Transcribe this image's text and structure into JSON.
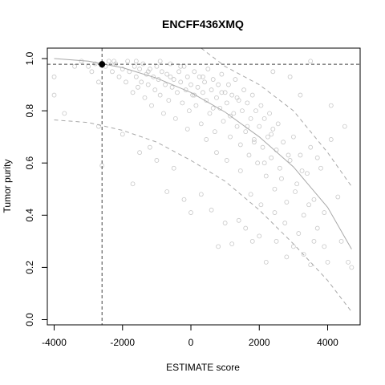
{
  "chart_data": {
    "type": "scatter",
    "title": "ENCFF436XMQ",
    "xlabel": "ESTIMATE score",
    "ylabel": "Tumor purity",
    "xlim": [
      -4200,
      4950
    ],
    "ylim": [
      -0.02,
      1.04
    ],
    "x_ticks": [
      -4000,
      -2000,
      0,
      2000,
      4000
    ],
    "x_tick_labels": [
      "-4000",
      "-2000",
      "0",
      "2000",
      "4000"
    ],
    "y_ticks": [
      0.0,
      0.2,
      0.4,
      0.6,
      0.8,
      1.0
    ],
    "y_tick_labels": [
      "0.0",
      "0.2",
      "0.4",
      "0.6",
      "0.8",
      "1.0"
    ],
    "grid": false,
    "legend": "none",
    "colors": {
      "points": "#c8c8c8",
      "fit_line": "#a8a8a8",
      "highlight": "#000000",
      "reference_lines": "#444444",
      "frame": "#000000"
    },
    "fit_curve": {
      "x": [
        -4000,
        -3000,
        -2000,
        -1000,
        0,
        1000,
        2000,
        3000,
        4000,
        4700
      ],
      "y": [
        1.0,
        0.99,
        0.965,
        0.925,
        0.87,
        0.795,
        0.7,
        0.585,
        0.43,
        0.27
      ]
    },
    "upper_bound": {
      "x": [
        300,
        1000,
        2000,
        3000,
        4000,
        4700
      ],
      "y": [
        1.04,
        0.97,
        0.9,
        0.8,
        0.64,
        0.51
      ]
    },
    "lower_bound": {
      "x": [
        -4000,
        -3000,
        -2000,
        -1000,
        0,
        1000,
        2000,
        3000,
        4000,
        4700
      ],
      "y": [
        0.765,
        0.755,
        0.725,
        0.68,
        0.61,
        0.53,
        0.42,
        0.29,
        0.15,
        0.03
      ]
    },
    "highlight_point": {
      "x": -2600,
      "y": 0.978
    },
    "reference_lines": {
      "vertical_x": -2600,
      "horizontal_y": 0.978,
      "style": "dashed"
    },
    "scatter_points": [
      [
        -4000,
        0.93
      ],
      [
        -4000,
        0.86
      ],
      [
        -3700,
        0.79
      ],
      [
        -3200,
        0.99
      ],
      [
        -3000,
        0.97
      ],
      [
        -2900,
        0.95
      ],
      [
        -2700,
        0.91
      ],
      [
        -2500,
        0.97
      ],
      [
        -2400,
        0.99
      ],
      [
        -2300,
        0.95
      ],
      [
        -2200,
        0.98
      ],
      [
        -2100,
        0.93
      ],
      [
        -2000,
        0.96
      ],
      [
        -1900,
        0.91
      ],
      [
        -1850,
        0.99
      ],
      [
        -1800,
        0.95
      ],
      [
        -1700,
        0.87
      ],
      [
        -1650,
        0.97
      ],
      [
        -1600,
        0.93
      ],
      [
        -1550,
        0.89
      ],
      [
        -1500,
        0.96
      ],
      [
        -1450,
        0.91
      ],
      [
        -1400,
        0.98
      ],
      [
        -1350,
        0.85
      ],
      [
        -1300,
        0.94
      ],
      [
        -1250,
        0.9
      ],
      [
        -1200,
        0.96
      ],
      [
        -1150,
        0.82
      ],
      [
        -1100,
        0.93
      ],
      [
        -1050,
        0.88
      ],
      [
        -1000,
        0.97
      ],
      [
        -950,
        0.92
      ],
      [
        -900,
        0.86
      ],
      [
        -850,
        0.95
      ],
      [
        -800,
        0.79
      ],
      [
        -750,
        0.9
      ],
      [
        -700,
        0.94
      ],
      [
        -650,
        0.84
      ],
      [
        -600,
        0.98
      ],
      [
        -550,
        0.89
      ],
      [
        -500,
        0.92
      ],
      [
        -450,
        0.77
      ],
      [
        -400,
        0.87
      ],
      [
        -350,
        0.95
      ],
      [
        -300,
        0.91
      ],
      [
        -250,
        0.83
      ],
      [
        -200,
        0.97
      ],
      [
        -150,
        0.88
      ],
      [
        -100,
        0.93
      ],
      [
        -50,
        0.8
      ],
      [
        0,
        0.9
      ],
      [
        50,
        0.86
      ],
      [
        100,
        0.95
      ],
      [
        150,
        0.82
      ],
      [
        200,
        0.89
      ],
      [
        250,
        0.93
      ],
      [
        300,
        0.75
      ],
      [
        350,
        0.87
      ],
      [
        400,
        0.91
      ],
      [
        450,
        0.84
      ],
      [
        500,
        0.96
      ],
      [
        550,
        0.79
      ],
      [
        600,
        0.88
      ],
      [
        650,
        0.92
      ],
      [
        700,
        0.72
      ],
      [
        750,
        0.85
      ],
      [
        800,
        0.9
      ],
      [
        850,
        0.81
      ],
      [
        900,
        0.94
      ],
      [
        950,
        0.76
      ],
      [
        1000,
        0.87
      ],
      [
        1050,
        0.83
      ],
      [
        1100,
        0.9
      ],
      [
        1150,
        0.7
      ],
      [
        1200,
        0.86
      ],
      [
        1250,
        0.79
      ],
      [
        1300,
        0.92
      ],
      [
        1350,
        0.74
      ],
      [
        1400,
        0.84
      ],
      [
        1450,
        0.67
      ],
      [
        1500,
        0.8
      ],
      [
        1550,
        0.88
      ],
      [
        1600,
        0.72
      ],
      [
        1650,
        0.83
      ],
      [
        1700,
        0.63
      ],
      [
        1750,
        0.77
      ],
      [
        1800,
        0.86
      ],
      [
        1850,
        0.69
      ],
      [
        1900,
        0.8
      ],
      [
        1950,
        0.6
      ],
      [
        2000,
        0.74
      ],
      [
        2050,
        0.82
      ],
      [
        2100,
        0.66
      ],
      [
        2150,
        0.77
      ],
      [
        2200,
        0.55
      ],
      [
        2250,
        0.7
      ],
      [
        2300,
        0.79
      ],
      [
        2350,
        0.62
      ],
      [
        2400,
        0.73
      ],
      [
        2450,
        0.5
      ],
      [
        2500,
        0.65
      ],
      [
        2550,
        0.75
      ],
      [
        2600,
        0.58
      ],
      [
        2700,
        0.68
      ],
      [
        2800,
        0.45
      ],
      [
        2900,
        0.61
      ],
      [
        3000,
        0.7
      ],
      [
        3100,
        0.52
      ],
      [
        3200,
        0.63
      ],
      [
        3300,
        0.4
      ],
      [
        3400,
        0.56
      ],
      [
        3500,
        0.66
      ],
      [
        3600,
        0.46
      ],
      [
        3700,
        0.35
      ],
      [
        3800,
        0.58
      ],
      [
        3900,
        0.28
      ],
      [
        4000,
        0.22
      ],
      [
        4100,
        0.69
      ],
      [
        4500,
        0.74
      ],
      [
        4600,
        0.22
      ],
      [
        4700,
        0.2
      ],
      [
        3500,
        0.21
      ],
      [
        3300,
        0.25
      ],
      [
        3000,
        0.28
      ],
      [
        2800,
        0.24
      ],
      [
        2500,
        0.3
      ],
      [
        2200,
        0.22
      ],
      [
        2000,
        0.32
      ],
      [
        1800,
        0.3
      ],
      [
        1600,
        0.35
      ],
      [
        1400,
        0.38
      ],
      [
        1200,
        0.29
      ],
      [
        1000,
        0.37
      ],
      [
        800,
        0.28
      ],
      [
        600,
        0.42
      ],
      [
        300,
        0.48
      ],
      [
        0,
        0.41
      ],
      [
        -200,
        0.46
      ],
      [
        -500,
        0.58
      ],
      [
        -700,
        0.49
      ],
      [
        -1000,
        0.61
      ],
      [
        -1200,
        0.66
      ],
      [
        -1500,
        0.64
      ],
      [
        -1700,
        0.52
      ],
      [
        -2000,
        0.71
      ],
      [
        -2600,
        0.59
      ],
      [
        -2700,
        0.74
      ],
      [
        2900,
        0.93
      ],
      [
        3500,
        0.99
      ],
      [
        3200,
        0.86
      ],
      [
        2400,
        0.95
      ],
      [
        4100,
        0.82
      ],
      [
        4300,
        0.47
      ],
      [
        4400,
        0.3
      ],
      [
        3700,
        0.62
      ],
      [
        100,
        0.86
      ],
      [
        350,
        0.93
      ],
      [
        650,
        0.81
      ],
      [
        900,
        0.87
      ],
      [
        1150,
        0.78
      ],
      [
        1350,
        0.85
      ],
      [
        1650,
        0.74
      ],
      [
        1850,
        0.68
      ],
      [
        2150,
        0.6
      ],
      [
        2350,
        0.71
      ],
      [
        2650,
        0.54
      ],
      [
        2850,
        0.63
      ],
      [
        3050,
        0.49
      ],
      [
        3250,
        0.57
      ],
      [
        3450,
        0.44
      ],
      [
        -300,
        0.97
      ],
      [
        -600,
        0.93
      ],
      [
        -900,
        0.99
      ],
      [
        -1250,
        0.95
      ],
      [
        -1600,
        0.99
      ],
      [
        -2250,
        0.99
      ],
      [
        -2800,
        0.98
      ],
      [
        -3400,
        0.97
      ],
      [
        -100,
        0.73
      ],
      [
        450,
        0.69
      ],
      [
        750,
        0.64
      ],
      [
        1050,
        0.61
      ],
      [
        1450,
        0.57
      ],
      [
        1750,
        0.48
      ],
      [
        2050,
        0.44
      ],
      [
        2450,
        0.41
      ],
      [
        2750,
        0.37
      ],
      [
        3150,
        0.33
      ],
      [
        3600,
        0.3
      ],
      [
        3900,
        0.41
      ]
    ]
  }
}
